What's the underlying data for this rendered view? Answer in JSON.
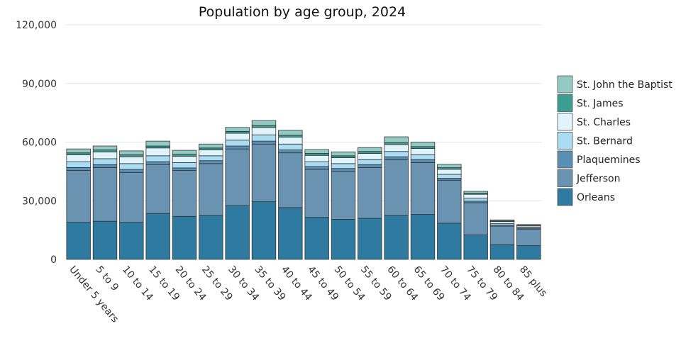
{
  "chart_data": {
    "type": "bar",
    "stacked": true,
    "title": "Population by age group, 2024",
    "xlabel": "",
    "ylabel": "",
    "ylim": [
      0,
      120000
    ],
    "yticks": [
      0,
      30000,
      60000,
      90000,
      120000
    ],
    "ytick_labels": [
      "0",
      "30,000",
      "60,000",
      "90,000",
      "120,000"
    ],
    "grid": true,
    "legend_position": "right",
    "categories": [
      "Under 5 years",
      "5 to 9",
      "10 to 14",
      "15 to 19",
      "20 to 24",
      "25 to 29",
      "30 to 34",
      "35 to 39",
      "40 to 44",
      "45 to 49",
      "50 to 54",
      "55 to 59",
      "60 to 64",
      "65 to 69",
      "70 to 74",
      "75 to 79",
      "80 to 84",
      "85 plus"
    ],
    "series": [
      {
        "name": "Orleans",
        "color": "#2e7aa1",
        "values": [
          19000,
          19500,
          19000,
          23500,
          22000,
          22500,
          27500,
          29500,
          26500,
          21500,
          20500,
          21000,
          22500,
          23000,
          18500,
          12500,
          7500,
          7000
        ]
      },
      {
        "name": "Jefferson",
        "color": "#6993b0",
        "values": [
          26500,
          27500,
          25500,
          25000,
          23500,
          26500,
          29000,
          29500,
          28000,
          24500,
          24500,
          26000,
          28500,
          26500,
          22000,
          16500,
          9500,
          8500
        ]
      },
      {
        "name": "Plaquemines",
        "color": "#5a8fb5",
        "values": [
          1500,
          1500,
          1500,
          1500,
          1300,
          1500,
          1500,
          1500,
          1500,
          1500,
          1500,
          1500,
          1500,
          1500,
          1000,
          800,
          600,
          500
        ]
      },
      {
        "name": "St. Bernard",
        "color": "#aadcf4",
        "values": [
          3000,
          3000,
          3000,
          3000,
          2700,
          2500,
          3000,
          3200,
          3000,
          2500,
          2500,
          2500,
          2700,
          2500,
          2000,
          1500,
          800,
          600
        ]
      },
      {
        "name": "St. Charles",
        "color": "#e2f4fb",
        "values": [
          3500,
          3500,
          3500,
          4000,
          3300,
          3000,
          3500,
          3800,
          3500,
          3200,
          3000,
          3200,
          3500,
          3200,
          2600,
          2000,
          1000,
          700
        ]
      },
      {
        "name": "St. James",
        "color": "#3a9e93",
        "values": [
          1000,
          1000,
          1000,
          1000,
          1000,
          1000,
          1000,
          1000,
          1000,
          1000,
          1000,
          1000,
          1000,
          1000,
          800,
          600,
          300,
          200
        ]
      },
      {
        "name": "St. John the Baptist",
        "color": "#93cbc4",
        "values": [
          2000,
          2000,
          2000,
          2500,
          2000,
          2000,
          2000,
          2500,
          2500,
          2000,
          2000,
          2000,
          3000,
          2300,
          1700,
          900,
          500,
          300
        ]
      }
    ]
  }
}
